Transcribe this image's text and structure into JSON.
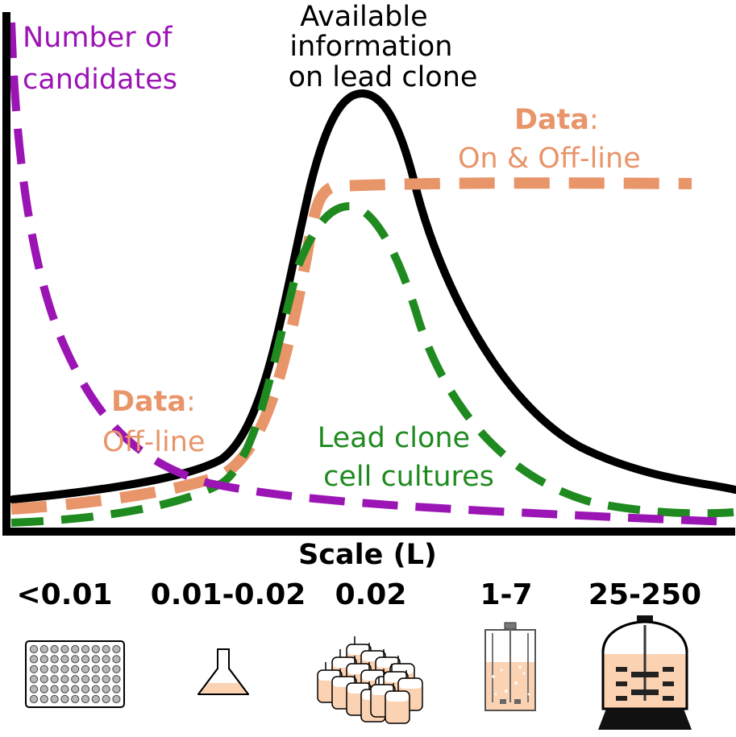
{
  "colors": {
    "number_of_candidates": "#9b14b4",
    "available_information": "#000000",
    "data": "#e8956a",
    "lead_clone": "#1f8a1f",
    "vessel_fill": "#fbd2b2",
    "axis": "#000000"
  },
  "labels": {
    "number_of_candidates": [
      "Number of",
      "candidates"
    ],
    "available_information": [
      "Available",
      "information",
      "on lead clone"
    ],
    "data_online_title": "Data",
    "data_online_colon": ":",
    "data_online_sub": "On & Off-line",
    "data_offline_title": "Data",
    "data_offline_colon": ":",
    "data_offline_sub": "Off-line",
    "lead_clone": [
      "Lead clone",
      "cell cultures"
    ]
  },
  "axis": {
    "x_label": "Scale (L)"
  },
  "scales": [
    "<0.01",
    "0.01-0.02",
    "0.02",
    "1-7",
    "25-250"
  ],
  "icons": [
    "well-plate-icon",
    "shake-flask-icon",
    "mini-bioreactor-array-icon",
    "benchtop-bioreactor-icon",
    "pilot-bioreactor-icon"
  ]
}
